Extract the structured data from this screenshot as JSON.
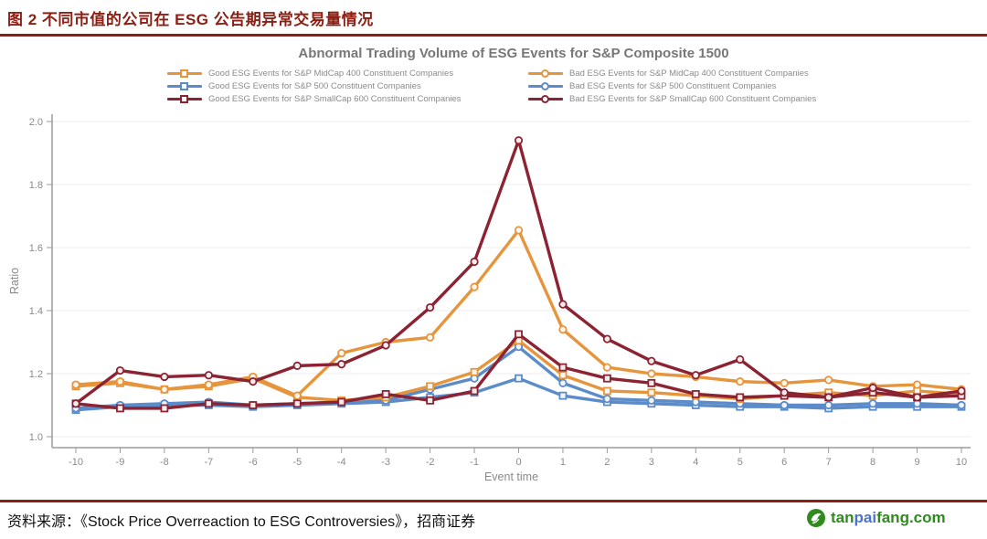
{
  "header": {
    "figure_title": "图 2  不同市值的公司在 ESG 公告期异常交易量情况"
  },
  "footer": {
    "source_text": "资料来源：《Stock Price Overreaction to ESG Controversies》，招商证券",
    "logo": {
      "icon": "tanpaifang-leaf-icon",
      "parts": [
        {
          "text": "tan",
          "color": "#2F8A1F"
        },
        {
          "text": "pai",
          "color": "#4A73D0"
        },
        {
          "text": "fang.com",
          "color": "#2F8A1F"
        }
      ]
    }
  },
  "colors": {
    "header_red": "#8C2014",
    "orange": "#E6953C",
    "blue": "#5B8BC9",
    "maroon": "#8B2332",
    "chart_title_gray": "#777777",
    "legend_text_gray": "#8B8B8B",
    "axis_text_gray": "#8A8A8A",
    "axis_line_gray": "#9B9B9B",
    "gridline_gray": "#ECECEC",
    "logo_green": "#2F8A1F",
    "logo_blue": "#4A73D0"
  },
  "chart_data": {
    "type": "line",
    "title": "Abnormal Trading Volume of ESG Events for S&P Composite 1500",
    "xlabel": "Event time",
    "ylabel": "Ratio",
    "x": [
      -10,
      -9,
      -8,
      -7,
      -6,
      -5,
      -4,
      -3,
      -2,
      -1,
      0,
      1,
      2,
      3,
      4,
      5,
      6,
      7,
      8,
      9,
      10
    ],
    "ylim": [
      1.0,
      2.0
    ],
    "yticks": [
      1.0,
      1.2,
      1.4,
      1.6,
      1.8,
      2.0
    ],
    "grid": "horizontal",
    "legend_position": "top",
    "series": [
      {
        "name": "Good ESG Events for S&P MidCap 400 Constituent Companies",
        "group": "good",
        "marker": "square",
        "color": "#E6953C",
        "values": [
          1.16,
          1.17,
          1.15,
          1.16,
          1.185,
          1.125,
          1.115,
          1.125,
          1.16,
          1.205,
          1.305,
          1.195,
          1.145,
          1.14,
          1.13,
          1.12,
          1.13,
          1.14,
          1.13,
          1.145,
          1.135
        ]
      },
      {
        "name": "Good ESG Events for S&P 500 Constituent Companies",
        "group": "good",
        "marker": "square",
        "color": "#5B8BC9",
        "values": [
          1.085,
          1.095,
          1.1,
          1.1,
          1.095,
          1.1,
          1.105,
          1.11,
          1.125,
          1.14,
          1.185,
          1.13,
          1.11,
          1.105,
          1.1,
          1.095,
          1.095,
          1.09,
          1.095,
          1.095,
          1.095
        ]
      },
      {
        "name": "Good ESG Events for S&P SmallCap 600 Constituent Companies",
        "group": "good",
        "marker": "square",
        "color": "#8B2332",
        "values": [
          1.105,
          1.09,
          1.09,
          1.105,
          1.1,
          1.105,
          1.11,
          1.135,
          1.115,
          1.145,
          1.325,
          1.22,
          1.185,
          1.17,
          1.135,
          1.125,
          1.13,
          1.125,
          1.14,
          1.125,
          1.13
        ]
      },
      {
        "name": "Bad ESG Events for S&P MidCap 400 Constituent Companies",
        "group": "bad",
        "marker": "circle",
        "color": "#E6953C",
        "values": [
          1.165,
          1.175,
          1.15,
          1.165,
          1.19,
          1.13,
          1.265,
          1.3,
          1.315,
          1.475,
          1.655,
          1.34,
          1.22,
          1.2,
          1.19,
          1.175,
          1.17,
          1.18,
          1.16,
          1.165,
          1.15
        ]
      },
      {
        "name": "Bad ESG Events for S&P 500 Constituent Companies",
        "group": "bad",
        "marker": "circle",
        "color": "#5B8BC9",
        "values": [
          1.09,
          1.1,
          1.105,
          1.11,
          1.1,
          1.105,
          1.11,
          1.115,
          1.15,
          1.185,
          1.285,
          1.17,
          1.12,
          1.115,
          1.11,
          1.105,
          1.1,
          1.1,
          1.105,
          1.105,
          1.1
        ]
      },
      {
        "name": "Bad ESG Events for S&P SmallCap 600 Constituent Companies",
        "group": "bad",
        "marker": "circle",
        "color": "#8B2332",
        "values": [
          1.105,
          1.21,
          1.19,
          1.195,
          1.175,
          1.225,
          1.23,
          1.29,
          1.41,
          1.555,
          1.94,
          1.42,
          1.31,
          1.24,
          1.195,
          1.245,
          1.14,
          1.125,
          1.155,
          1.125,
          1.145
        ]
      }
    ]
  }
}
